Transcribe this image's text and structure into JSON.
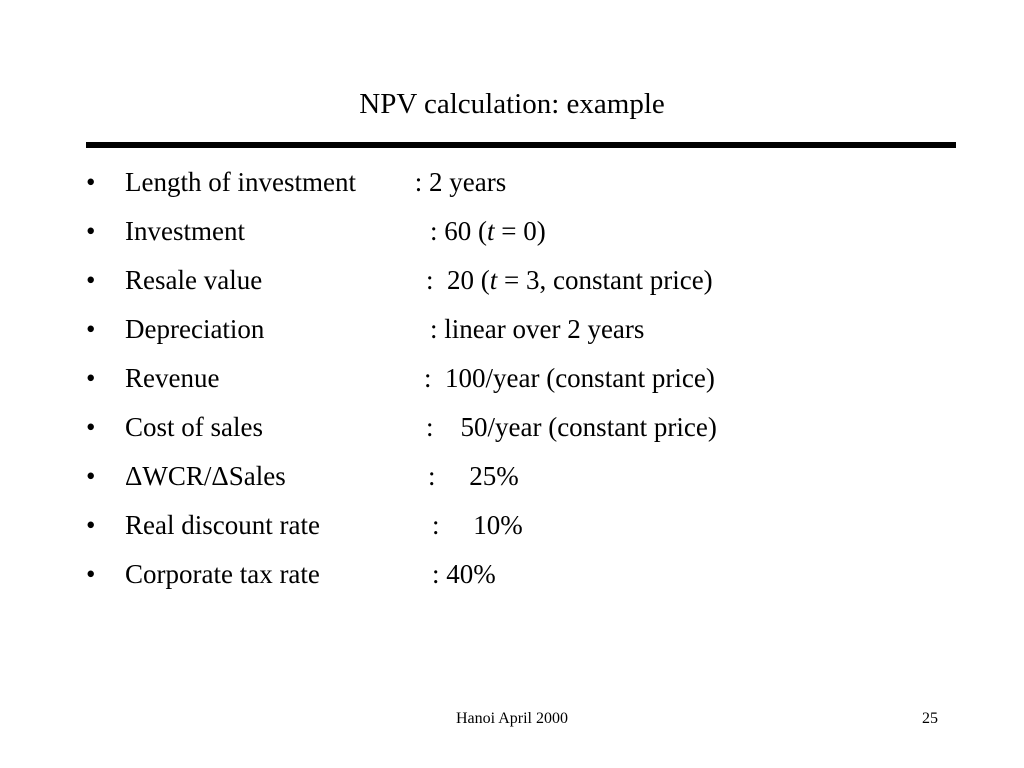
{
  "slide": {
    "title": "NPV calculation: example",
    "bullet_symbol": "•",
    "items": [
      {
        "label": "Length of investment",
        "value": " : 2 years"
      },
      {
        "label": "Investment",
        "value": ": 60 (t = 0)"
      },
      {
        "label": "Resale value",
        "value": ":  20 (t = 3, constant price)"
      },
      {
        "label": "Depreciation",
        "value": ": linear over 2 years"
      },
      {
        "label": "Revenue",
        "value": ":  100/year (constant price)"
      },
      {
        "label": "Cost of sales",
        "value": ":    50/year (constant price)"
      },
      {
        "label": "ΔWCR/ΔSales",
        "value": ":     25%"
      },
      {
        "label": "Real discount rate",
        "value": ":     10%"
      },
      {
        "label": "Corporate tax rate",
        "value": ": 40%"
      }
    ],
    "footer": {
      "center_text": "Hanoi April 2000",
      "page_number": "25"
    }
  }
}
